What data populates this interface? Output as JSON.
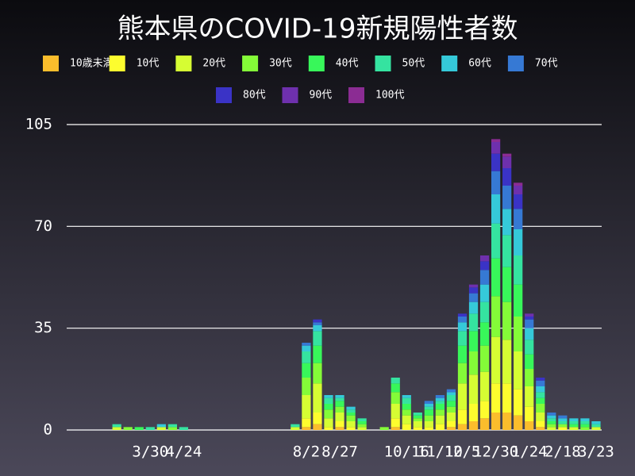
{
  "chart_data": {
    "type": "stacked-bar",
    "title": "熊本県のCOVID-19新規陽性者数",
    "categories": [
      null,
      null,
      null,
      null,
      null,
      null,
      null,
      "3/30",
      null,
      null,
      "4/24",
      null,
      null,
      null,
      null,
      null,
      null,
      null,
      null,
      null,
      null,
      "8/2",
      null,
      null,
      "8/27",
      null,
      null,
      null,
      null,
      null,
      "10/16",
      null,
      null,
      "11/10",
      null,
      "12/5",
      null,
      null,
      "12/30",
      null,
      null,
      "1/24",
      null,
      null,
      "2/18",
      null,
      null,
      "3/23"
    ],
    "ylim": [
      0,
      105
    ],
    "yticks": [
      0,
      35,
      70,
      105
    ],
    "grid": true,
    "series": [
      {
        "name": "10歳未満",
        "color": "#fbbd2c",
        "values": [
          0,
          0,
          0,
          0,
          0,
          0,
          0,
          0,
          0,
          0,
          0,
          0,
          0,
          0,
          0,
          0,
          0,
          0,
          0,
          0,
          0,
          1,
          2,
          0,
          1,
          0,
          0,
          0,
          0,
          1,
          0,
          0,
          0,
          0,
          1,
          2,
          3,
          4,
          6,
          6,
          5,
          3,
          1,
          0,
          0,
          0,
          0,
          0
        ]
      },
      {
        "name": "10代",
        "color": "#fdfd2e",
        "values": [
          0,
          0,
          0,
          0,
          0,
          0,
          0,
          0,
          0,
          0,
          0,
          0,
          0,
          0,
          0,
          0,
          0,
          0,
          0,
          0,
          0,
          3,
          4,
          1,
          2,
          1,
          0,
          0,
          0,
          3,
          2,
          1,
          1,
          2,
          2,
          5,
          6,
          6,
          10,
          10,
          9,
          5,
          2,
          0,
          1,
          0,
          0,
          0
        ]
      },
      {
        "name": "20代",
        "color": "#d6fd33",
        "values": [
          0,
          0,
          0,
          0,
          1,
          0,
          0,
          0,
          1,
          0,
          0,
          0,
          0,
          0,
          0,
          0,
          0,
          0,
          0,
          0,
          1,
          8,
          10,
          3,
          3,
          2,
          1,
          0,
          0,
          5,
          3,
          2,
          2,
          3,
          3,
          9,
          10,
          10,
          16,
          15,
          13,
          7,
          3,
          1,
          0,
          1,
          0,
          1
        ]
      },
      {
        "name": "30代",
        "color": "#84fb38",
        "values": [
          0,
          0,
          0,
          0,
          0,
          1,
          0,
          0,
          0,
          1,
          0,
          0,
          0,
          0,
          0,
          0,
          0,
          0,
          0,
          0,
          0,
          6,
          7,
          3,
          2,
          2,
          1,
          0,
          1,
          4,
          2,
          1,
          2,
          2,
          2,
          7,
          8,
          9,
          14,
          13,
          12,
          6,
          3,
          1,
          1,
          0,
          1,
          0
        ]
      },
      {
        "name": "40代",
        "color": "#38f75a",
        "values": [
          0,
          0,
          0,
          0,
          0,
          0,
          1,
          0,
          0,
          0,
          0,
          0,
          0,
          0,
          0,
          0,
          0,
          0,
          0,
          0,
          0,
          5,
          6,
          2,
          2,
          1,
          1,
          0,
          0,
          3,
          2,
          1,
          2,
          2,
          2,
          6,
          7,
          8,
          13,
          12,
          11,
          5,
          2,
          1,
          0,
          1,
          1,
          0
        ]
      },
      {
        "name": "50代",
        "color": "#35e3a0",
        "values": [
          0,
          0,
          0,
          0,
          1,
          0,
          0,
          1,
          0,
          1,
          1,
          0,
          0,
          0,
          0,
          0,
          0,
          0,
          0,
          0,
          1,
          4,
          5,
          2,
          1,
          1,
          1,
          0,
          0,
          2,
          2,
          1,
          1,
          1,
          2,
          5,
          6,
          7,
          12,
          11,
          10,
          5,
          2,
          1,
          1,
          1,
          1,
          1
        ]
      },
      {
        "name": "60代",
        "color": "#35c9d9",
        "values": [
          0,
          0,
          0,
          0,
          0,
          0,
          0,
          0,
          1,
          0,
          0,
          0,
          0,
          0,
          0,
          0,
          0,
          0,
          0,
          0,
          0,
          2,
          2,
          1,
          1,
          1,
          0,
          0,
          0,
          0,
          1,
          0,
          1,
          1,
          1,
          3,
          4,
          6,
          10,
          9,
          9,
          4,
          2,
          1,
          1,
          1,
          1,
          1
        ]
      },
      {
        "name": "70代",
        "color": "#3679d4",
        "values": [
          0,
          0,
          0,
          0,
          0,
          0,
          0,
          0,
          0,
          0,
          0,
          0,
          0,
          0,
          0,
          0,
          0,
          0,
          0,
          0,
          0,
          1,
          1,
          0,
          0,
          0,
          0,
          0,
          0,
          0,
          0,
          0,
          1,
          1,
          1,
          2,
          3,
          5,
          8,
          8,
          7,
          3,
          2,
          1,
          1,
          0,
          0,
          0
        ]
      },
      {
        "name": "80代",
        "color": "#3a33c6",
        "values": [
          0,
          0,
          0,
          0,
          0,
          0,
          0,
          0,
          0,
          0,
          0,
          0,
          0,
          0,
          0,
          0,
          0,
          0,
          0,
          0,
          0,
          0,
          1,
          0,
          0,
          0,
          0,
          0,
          0,
          0,
          0,
          0,
          0,
          0,
          0,
          1,
          2,
          3,
          6,
          6,
          5,
          1,
          1,
          0,
          0,
          0,
          0,
          0
        ]
      },
      {
        "name": "90代",
        "color": "#6e30ad",
        "values": [
          0,
          0,
          0,
          0,
          0,
          0,
          0,
          0,
          0,
          0,
          0,
          0,
          0,
          0,
          0,
          0,
          0,
          0,
          0,
          0,
          0,
          0,
          0,
          0,
          0,
          0,
          0,
          0,
          0,
          0,
          0,
          0,
          0,
          0,
          0,
          0,
          1,
          2,
          4,
          4,
          3,
          1,
          0,
          0,
          0,
          0,
          0,
          0
        ]
      },
      {
        "name": "100代",
        "color": "#8b2c93",
        "values": [
          0,
          0,
          0,
          0,
          0,
          0,
          0,
          0,
          0,
          0,
          0,
          0,
          0,
          0,
          0,
          0,
          0,
          0,
          0,
          0,
          0,
          0,
          0,
          0,
          0,
          0,
          0,
          0,
          0,
          0,
          0,
          0,
          0,
          0,
          0,
          0,
          0,
          0,
          1,
          1,
          1,
          0,
          0,
          0,
          0,
          0,
          0,
          0
        ]
      }
    ]
  }
}
